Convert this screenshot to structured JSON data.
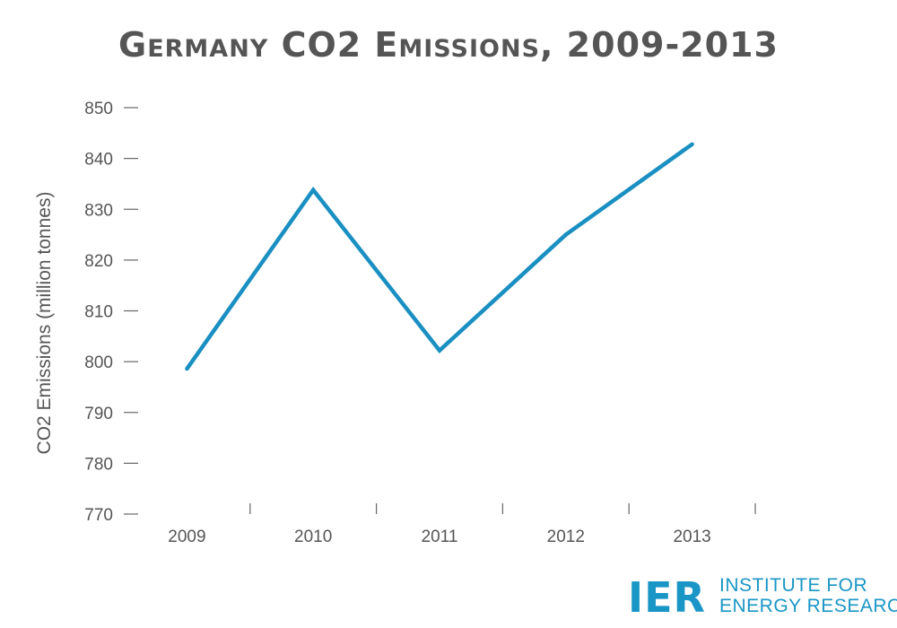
{
  "chart_data": {
    "type": "line",
    "title": "Germany CO2 Emissions, 2009-2013",
    "xlabel": "",
    "ylabel": "CO2 Emissions (million tonnes)",
    "categories": [
      "2009",
      "2010",
      "2011",
      "2012",
      "2013"
    ],
    "series": [
      {
        "values": [
          798.6,
          833.8,
          802.2,
          825.0,
          842.8
        ]
      }
    ],
    "ylim": [
      770,
      850
    ],
    "yticks": [
      770,
      780,
      790,
      800,
      810,
      820,
      830,
      840,
      850
    ],
    "grid": false,
    "line_color": "#1a8fc2"
  },
  "branding": {
    "mark": "IER",
    "line1": "INSTITUTE FOR",
    "line2": "ENERGY RESEARCH",
    "color": "#1a96c6"
  }
}
